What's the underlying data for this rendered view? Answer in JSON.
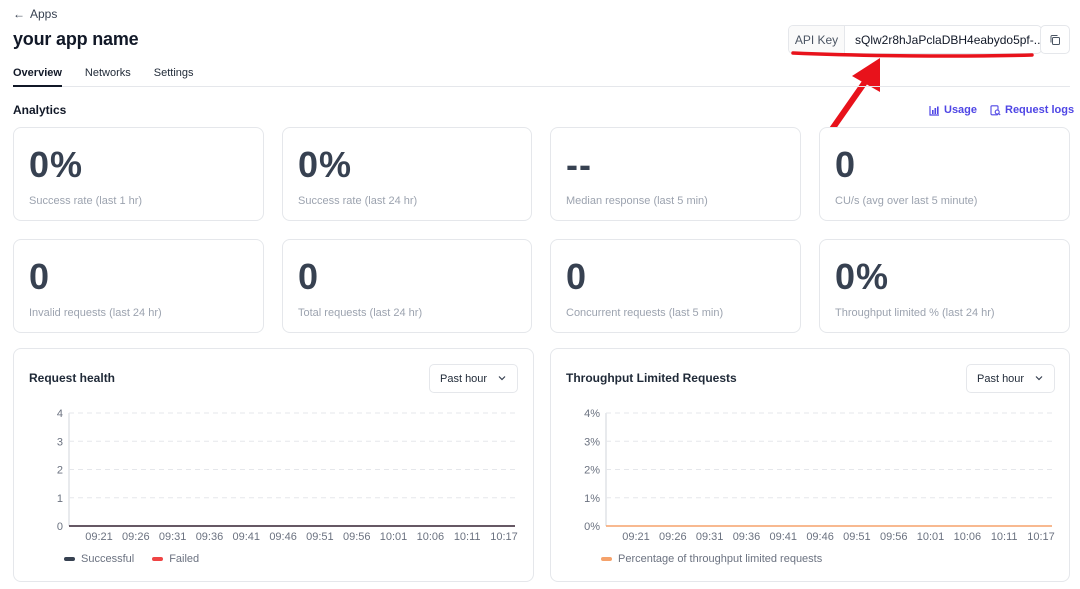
{
  "header": {
    "back_label": "Apps",
    "app_title": "your app name"
  },
  "api_key": {
    "label": "API Key",
    "value": "sQlw2r8hJaPclaDBH4eabydo5pf-..."
  },
  "tabs": [
    {
      "label": "Overview",
      "active": true
    },
    {
      "label": "Networks",
      "active": false
    },
    {
      "label": "Settings",
      "active": false
    }
  ],
  "analytics": {
    "title": "Analytics",
    "usage_link": "Usage",
    "request_logs_link": "Request logs",
    "link_color": "#4f46e5"
  },
  "stats": [
    {
      "value": "0%",
      "label": "Success rate (last 1 hr)"
    },
    {
      "value": "0%",
      "label": "Success rate (last 24 hr)"
    },
    {
      "value": "--",
      "label": "Median response (last 5 min)"
    },
    {
      "value": "0",
      "label": "CU/s (avg over last 5 minute)"
    },
    {
      "value": "0",
      "label": "Invalid requests (last 24 hr)"
    },
    {
      "value": "0",
      "label": "Total requests (last 24 hr)"
    },
    {
      "value": "0",
      "label": "Concurrent requests (last 5 min)"
    },
    {
      "value": "0%",
      "label": "Throughput limited % (last 24 hr)"
    }
  ],
  "annotation": {
    "color": "#e8121b"
  },
  "chart_data": [
    {
      "type": "line",
      "title": "Request health",
      "range_selector": "Past hour",
      "x": [
        "09:21",
        "09:26",
        "09:31",
        "09:36",
        "09:41",
        "09:46",
        "09:51",
        "09:56",
        "10:01",
        "10:06",
        "10:11",
        "10:17"
      ],
      "yticks": [
        "0",
        "1",
        "2",
        "3",
        "4"
      ],
      "ylim": [
        0,
        4
      ],
      "grid": true,
      "legend_position": "bottom-left",
      "series": [
        {
          "name": "Successful",
          "values": [
            0,
            0,
            0,
            0,
            0,
            0,
            0,
            0,
            0,
            0,
            0,
            0
          ],
          "color": "#374151"
        },
        {
          "name": "Failed",
          "values": [
            0,
            0,
            0,
            0,
            0,
            0,
            0,
            0,
            0,
            0,
            0,
            0
          ],
          "color": "#ef4444"
        }
      ]
    },
    {
      "type": "line",
      "title": "Throughput Limited Requests",
      "range_selector": "Past hour",
      "x": [
        "09:21",
        "09:26",
        "09:31",
        "09:36",
        "09:41",
        "09:46",
        "09:51",
        "09:56",
        "10:01",
        "10:06",
        "10:11",
        "10:17"
      ],
      "yticks": [
        "0%",
        "1%",
        "2%",
        "3%",
        "4%"
      ],
      "ylim": [
        0,
        4
      ],
      "grid": true,
      "legend_position": "bottom-left",
      "series": [
        {
          "name": "Percentage of throughput limited requests",
          "values": [
            0,
            0,
            0,
            0,
            0,
            0,
            0,
            0,
            0,
            0,
            0,
            0
          ],
          "color": "#f5a26b"
        }
      ]
    }
  ]
}
